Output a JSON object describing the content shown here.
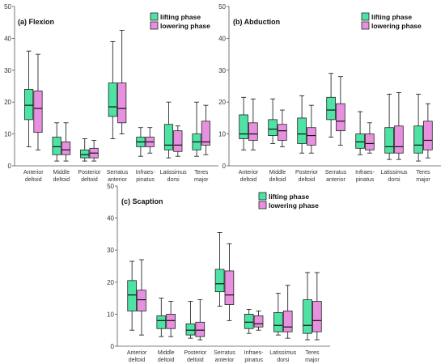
{
  "figure": {
    "colors": {
      "lifting": "#4ee3a4",
      "lowering": "#e890e0",
      "axis": "#555555",
      "whisker": "#111111"
    },
    "legend": {
      "lifting": "lifting phase",
      "lowering": "lowering phase"
    }
  },
  "chart_data": [
    {
      "type": "box",
      "title": "(a) Flexion",
      "ylim": [
        0,
        50
      ],
      "yticks": [
        0,
        10,
        20,
        30,
        40,
        50
      ],
      "categories": [
        "Anterior\ndeltoid",
        "Middle\ndeltoid",
        "Posterior\ndeltoid",
        "Serratus\nanterior",
        "Infraes-\npinatus",
        "Latissimus\ndorsi",
        "Teres\nmajor"
      ],
      "series": [
        {
          "name": "lifting phase",
          "boxes": [
            {
              "min": 6,
              "q1": 14.5,
              "median": 19,
              "q3": 24,
              "max": 36
            },
            {
              "min": 1.5,
              "q1": 3.5,
              "median": 6,
              "q3": 9,
              "max": 13.5
            },
            {
              "min": 1.5,
              "q1": 2.5,
              "median": 3.5,
              "q3": 5,
              "max": 8.5
            },
            {
              "min": 8.5,
              "q1": 15.5,
              "median": 18.5,
              "q3": 26,
              "max": 39
            },
            {
              "min": 3,
              "q1": 6,
              "median": 7.5,
              "q3": 9,
              "max": 12
            },
            {
              "min": 2.5,
              "q1": 5,
              "median": 6.5,
              "q3": 13,
              "max": 20
            },
            {
              "min": 3,
              "q1": 5,
              "median": 7.5,
              "q3": 10,
              "max": 20
            }
          ]
        },
        {
          "name": "lowering phase",
          "boxes": [
            {
              "min": 5,
              "q1": 10.5,
              "median": 18,
              "q3": 23.5,
              "max": 35
            },
            {
              "min": 1.5,
              "q1": 3.5,
              "median": 5,
              "q3": 7.5,
              "max": 13.5
            },
            {
              "min": 1.5,
              "q1": 2.5,
              "median": 4,
              "q3": 5.5,
              "max": 8
            },
            {
              "min": 10,
              "q1": 13.5,
              "median": 18,
              "q3": 26,
              "max": 42.5
            },
            {
              "min": 4,
              "q1": 6,
              "median": 7.5,
              "q3": 9,
              "max": 12
            },
            {
              "min": 3,
              "q1": 4.5,
              "median": 6.5,
              "q3": 11,
              "max": 12.5
            },
            {
              "min": 3.5,
              "q1": 6.5,
              "median": 7.5,
              "q3": 14,
              "max": 19
            }
          ]
        }
      ]
    },
    {
      "type": "box",
      "title": "(b) Abduction",
      "ylim": [
        0,
        50
      ],
      "yticks": [
        0,
        10,
        20,
        30,
        40,
        50
      ],
      "categories": [
        "Anterior\ndeltoid",
        "Middle\ndeltoid",
        "Posterior\ndeltoid",
        "Serratus\nanterior",
        "Infraes-\npinatus",
        "Latissimus\ndorsi",
        "Teres\nmajor"
      ],
      "series": [
        {
          "name": "lifting phase",
          "boxes": [
            {
              "min": 5,
              "q1": 8.5,
              "median": 10,
              "q3": 16,
              "max": 21.5
            },
            {
              "min": 7,
              "q1": 9.5,
              "median": 11.5,
              "q3": 14.5,
              "max": 21
            },
            {
              "min": 4,
              "q1": 7,
              "median": 10,
              "q3": 15,
              "max": 22
            },
            {
              "min": 9,
              "q1": 14.5,
              "median": 17.5,
              "q3": 21.5,
              "max": 29
            },
            {
              "min": 3.5,
              "q1": 5.5,
              "median": 7.5,
              "q3": 10,
              "max": 17
            },
            {
              "min": 2,
              "q1": 4,
              "median": 6,
              "q3": 12,
              "max": 22.5
            },
            {
              "min": 1.5,
              "q1": 4,
              "median": 6.5,
              "q3": 12.5,
              "max": 22.5
            }
          ]
        },
        {
          "name": "lowering phase",
          "boxes": [
            {
              "min": 5,
              "q1": 8,
              "median": 10,
              "q3": 13.5,
              "max": 21
            },
            {
              "min": 6,
              "q1": 8,
              "median": 11,
              "q3": 13,
              "max": 17.5
            },
            {
              "min": 4,
              "q1": 6.5,
              "median": 9.5,
              "q3": 12,
              "max": 19
            },
            {
              "min": 6.5,
              "q1": 11,
              "median": 14,
              "q3": 19.5,
              "max": 28
            },
            {
              "min": 4,
              "q1": 5,
              "median": 7,
              "q3": 10,
              "max": 13.5
            },
            {
              "min": 2,
              "q1": 4,
              "median": 6,
              "q3": 12.5,
              "max": 23
            },
            {
              "min": 2.5,
              "q1": 5,
              "median": 8,
              "q3": 14,
              "max": 19.5
            }
          ]
        }
      ]
    },
    {
      "type": "box",
      "title": "(c) Scaption",
      "ylim": [
        0,
        50
      ],
      "yticks": [
        0,
        10,
        20,
        30,
        40,
        50
      ],
      "categories": [
        "Anterior\ndeltoid",
        "Middle\ndeltoid",
        "Posterior\ndeltoid",
        "Serratus\nanterior",
        "Infraes-\npinatus",
        "Latissimus\ndorsi",
        "Teres\nmajor"
      ],
      "series": [
        {
          "name": "lifting phase",
          "boxes": [
            {
              "min": 5,
              "q1": 11,
              "median": 16,
              "q3": 20.5,
              "max": 26.5
            },
            {
              "min": 3,
              "q1": 5.5,
              "median": 8,
              "q3": 9.5,
              "max": 15
            },
            {
              "min": 2.5,
              "q1": 3.5,
              "median": 5,
              "q3": 7,
              "max": 14
            },
            {
              "min": 12.5,
              "q1": 17,
              "median": 19.5,
              "q3": 24,
              "max": 35.5
            },
            {
              "min": 4,
              "q1": 5.5,
              "median": 7.5,
              "q3": 10,
              "max": 11.5
            },
            {
              "min": 3.5,
              "q1": 4.5,
              "median": 6.5,
              "q3": 10.5,
              "max": 16.5
            },
            {
              "min": 2,
              "q1": 4,
              "median": 6.5,
              "q3": 14.5,
              "max": 23
            }
          ]
        },
        {
          "name": "lowering phase",
          "boxes": [
            {
              "min": 3.5,
              "q1": 11,
              "median": 14.5,
              "q3": 17.5,
              "max": 27
            },
            {
              "min": 3,
              "q1": 5.5,
              "median": 8,
              "q3": 10,
              "max": 14
            },
            {
              "min": 2,
              "q1": 3,
              "median": 5,
              "q3": 7.5,
              "max": 14.5
            },
            {
              "min": 8,
              "q1": 13,
              "median": 16,
              "q3": 23.5,
              "max": 32
            },
            {
              "min": 5,
              "q1": 6,
              "median": 7,
              "q3": 9.5,
              "max": 11
            },
            {
              "min": 2.5,
              "q1": 4.5,
              "median": 6,
              "q3": 11,
              "max": 19
            },
            {
              "min": 2,
              "q1": 4.5,
              "median": 8,
              "q3": 14,
              "max": 23
            }
          ]
        }
      ]
    }
  ]
}
